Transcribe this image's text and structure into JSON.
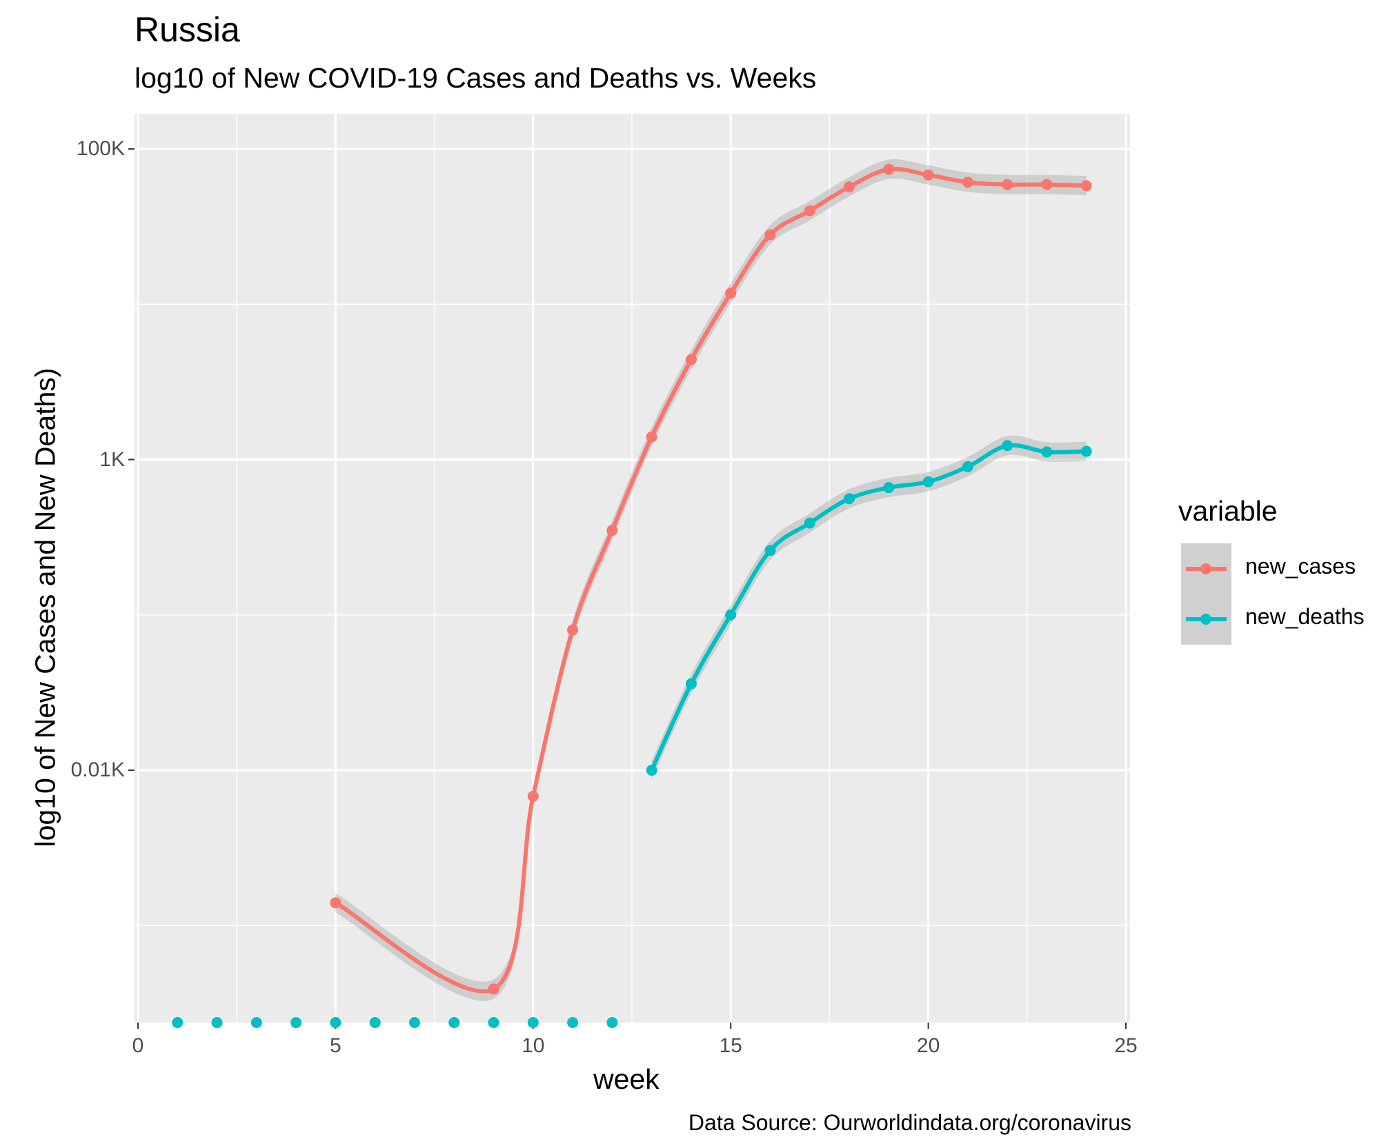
{
  "title": "Russia",
  "subtitle": "log10 of New COVID-19 Cases and Deaths vs. Weeks",
  "caption": "Data Source: Ourworldindata.org/coronavirus",
  "colors": {
    "new_cases": "#F8766D",
    "new_deaths": "#00BFC4",
    "panel": "#EBEBEB",
    "ribbon": "#999999"
  },
  "chart_data": {
    "type": "line",
    "xlabel": "week",
    "ylabel": "log10 of New Cases and New Deaths)",
    "xlim": [
      0,
      25
    ],
    "x_ticks": [
      "0",
      "5",
      "10",
      "15",
      "20",
      "25"
    ],
    "y_scale": "log10",
    "y_ticks": [
      {
        "value": 10,
        "label": "0.01K"
      },
      {
        "value": 1000,
        "label": "1K"
      },
      {
        "value": 100000,
        "label": "100K"
      }
    ],
    "grid": true,
    "legend": {
      "title": "variable",
      "position": "right"
    },
    "series": [
      {
        "name": "new_cases",
        "x": [
          5,
          9,
          10,
          11,
          12,
          13,
          14,
          15,
          16,
          17,
          18,
          19,
          20,
          21,
          22,
          23,
          24
        ],
        "y": [
          1.4,
          0.39,
          6.8,
          80,
          350,
          1400,
          4400,
          11800,
          28000,
          40000,
          57000,
          74000,
          68000,
          61000,
          59000,
          59000,
          58000
        ]
      },
      {
        "name": "new_deaths",
        "x": [
          1,
          2,
          3,
          4,
          5,
          6,
          7,
          8,
          9,
          10,
          11,
          12,
          13,
          14,
          15,
          16,
          17,
          18,
          19,
          20,
          21,
          22,
          23,
          24
        ],
        "y": [
          0,
          0,
          0,
          0,
          0,
          0,
          0,
          0,
          0,
          0,
          0,
          0,
          10,
          36,
          100,
          260,
          390,
          560,
          660,
          720,
          900,
          1230,
          1120,
          1130
        ]
      }
    ]
  }
}
